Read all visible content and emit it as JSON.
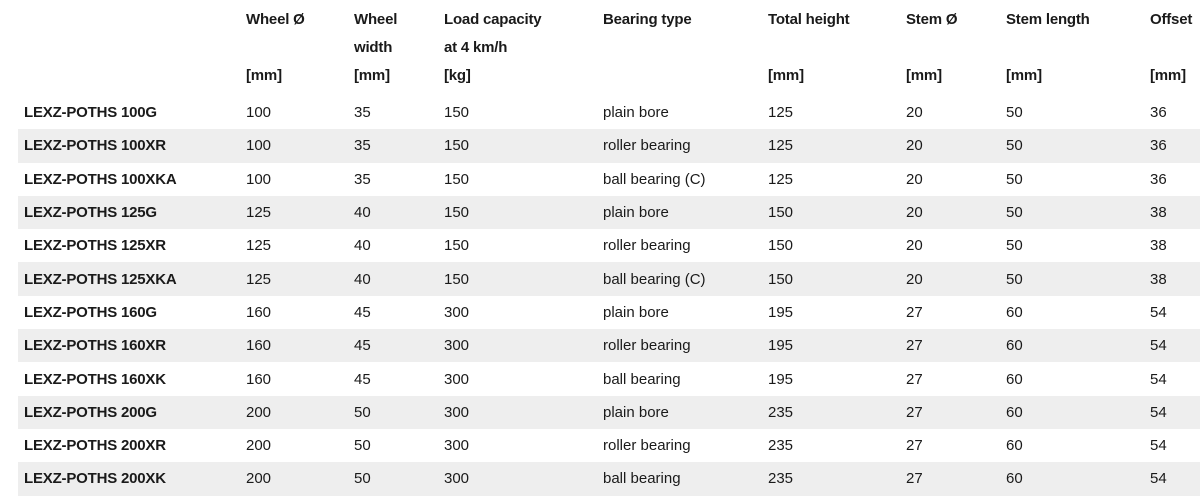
{
  "columns": [
    {
      "lines": [
        "",
        "",
        ""
      ]
    },
    {
      "lines": [
        "Wheel Ø",
        "",
        "[mm]"
      ]
    },
    {
      "lines": [
        "Wheel",
        "width",
        "[mm]"
      ]
    },
    {
      "lines": [
        "Load capacity",
        "at 4 km/h",
        "[kg]"
      ]
    },
    {
      "lines": [
        "Bearing type",
        "",
        ""
      ]
    },
    {
      "lines": [
        "Total height",
        "",
        "[mm]"
      ]
    },
    {
      "lines": [
        "Stem Ø",
        "",
        "[mm]"
      ]
    },
    {
      "lines": [
        "Stem length",
        "",
        "[mm]"
      ]
    },
    {
      "lines": [
        "Offset",
        "",
        "[mm]"
      ]
    }
  ],
  "rows": [
    {
      "model": "LEXZ-POTHS 100G",
      "wheel_dia": "100",
      "wheel_width": "35",
      "load": "150",
      "bearing": "plain bore",
      "height": "125",
      "stem_dia": "20",
      "stem_len": "50",
      "offset": "36"
    },
    {
      "model": "LEXZ-POTHS 100XR",
      "wheel_dia": "100",
      "wheel_width": "35",
      "load": "150",
      "bearing": "roller bearing",
      "height": "125",
      "stem_dia": "20",
      "stem_len": "50",
      "offset": "36"
    },
    {
      "model": "LEXZ-POTHS 100XKA",
      "wheel_dia": "100",
      "wheel_width": "35",
      "load": "150",
      "bearing": "ball bearing (C)",
      "height": "125",
      "stem_dia": "20",
      "stem_len": "50",
      "offset": "36"
    },
    {
      "model": "LEXZ-POTHS 125G",
      "wheel_dia": "125",
      "wheel_width": "40",
      "load": "150",
      "bearing": "plain bore",
      "height": "150",
      "stem_dia": "20",
      "stem_len": "50",
      "offset": "38"
    },
    {
      "model": "LEXZ-POTHS 125XR",
      "wheel_dia": "125",
      "wheel_width": "40",
      "load": "150",
      "bearing": "roller bearing",
      "height": "150",
      "stem_dia": "20",
      "stem_len": "50",
      "offset": "38"
    },
    {
      "model": "LEXZ-POTHS 125XKA",
      "wheel_dia": "125",
      "wheel_width": "40",
      "load": "150",
      "bearing": "ball bearing (C)",
      "height": "150",
      "stem_dia": "20",
      "stem_len": "50",
      "offset": "38"
    },
    {
      "model": "LEXZ-POTHS 160G",
      "wheel_dia": "160",
      "wheel_width": "45",
      "load": "300",
      "bearing": "plain bore",
      "height": "195",
      "stem_dia": "27",
      "stem_len": "60",
      "offset": "54"
    },
    {
      "model": "LEXZ-POTHS 160XR",
      "wheel_dia": "160",
      "wheel_width": "45",
      "load": "300",
      "bearing": "roller bearing",
      "height": "195",
      "stem_dia": "27",
      "stem_len": "60",
      "offset": "54"
    },
    {
      "model": "LEXZ-POTHS 160XK",
      "wheel_dia": "160",
      "wheel_width": "45",
      "load": "300",
      "bearing": "ball bearing",
      "height": "195",
      "stem_dia": "27",
      "stem_len": "60",
      "offset": "54"
    },
    {
      "model": "LEXZ-POTHS 200G",
      "wheel_dia": "200",
      "wheel_width": "50",
      "load": "300",
      "bearing": "plain bore",
      "height": "235",
      "stem_dia": "27",
      "stem_len": "60",
      "offset": "54"
    },
    {
      "model": "LEXZ-POTHS 200XR",
      "wheel_dia": "200",
      "wheel_width": "50",
      "load": "300",
      "bearing": "roller bearing",
      "height": "235",
      "stem_dia": "27",
      "stem_len": "60",
      "offset": "54"
    },
    {
      "model": "LEXZ-POTHS 200XK",
      "wheel_dia": "200",
      "wheel_width": "50",
      "load": "300",
      "bearing": "ball bearing",
      "height": "235",
      "stem_dia": "27",
      "stem_len": "60",
      "offset": "54"
    }
  ],
  "colors": {
    "text": "#1a1a1a",
    "stripe": "#eeeeee",
    "background": "#ffffff"
  }
}
